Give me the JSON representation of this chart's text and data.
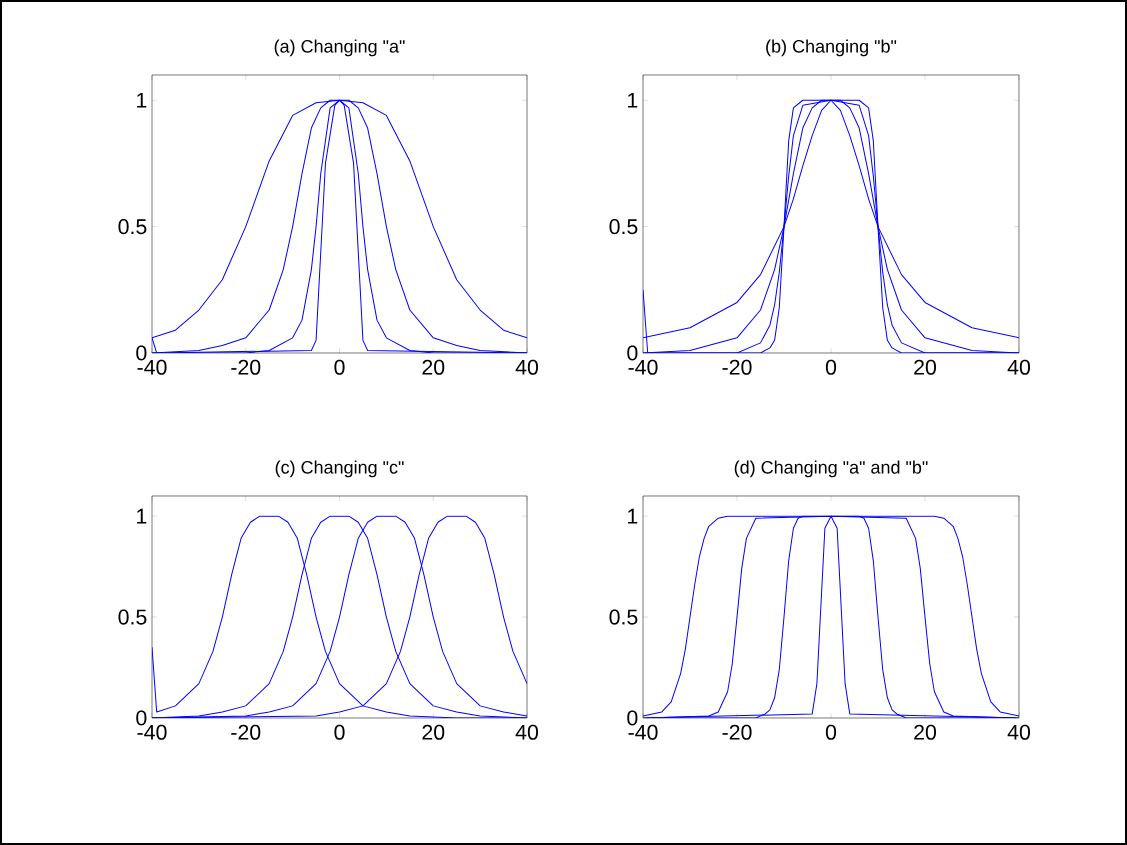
{
  "chart_data": [
    {
      "type": "line",
      "title": "(a) Changing \"a\"",
      "xlim": [
        -40,
        40
      ],
      "xticks": [
        -40,
        -20,
        0,
        20,
        40
      ],
      "ylim": [
        0,
        1.1
      ],
      "yticks": [
        0,
        0.5,
        1
      ],
      "series": [
        {
          "color": "#0000ff",
          "x": [
            -40,
            -35,
            -30,
            -25,
            -20,
            -15,
            -10,
            -5,
            0,
            5,
            10,
            15,
            20,
            25,
            30,
            35,
            40
          ],
          "values": [
            0.06,
            0.09,
            0.17,
            0.29,
            0.5,
            0.76,
            0.94,
            0.99,
            1,
            0.99,
            0.94,
            0.76,
            0.5,
            0.29,
            0.17,
            0.09,
            0.06
          ]
        },
        {
          "color": "#0000ff",
          "x": [
            -40,
            -30,
            -25,
            -20,
            -15,
            -12,
            -10,
            -8,
            -6,
            -4,
            -2,
            0,
            2,
            4,
            6,
            8,
            10,
            12,
            15,
            20,
            25,
            30,
            40
          ],
          "values": [
            0,
            0.01,
            0.03,
            0.06,
            0.17,
            0.33,
            0.5,
            0.71,
            0.89,
            0.97,
            1,
            1,
            1,
            0.97,
            0.89,
            0.71,
            0.5,
            0.33,
            0.17,
            0.06,
            0.03,
            0.01,
            0
          ]
        },
        {
          "color": "#0000ff",
          "x": [
            -40,
            -20,
            -15,
            -10,
            -8,
            -6,
            -5,
            -4,
            -2,
            0,
            2,
            4,
            5,
            6,
            8,
            10,
            15,
            20,
            40
          ],
          "values": [
            0,
            0,
            0.01,
            0.06,
            0.13,
            0.33,
            0.5,
            0.71,
            0.97,
            1,
            0.97,
            0.71,
            0.5,
            0.33,
            0.13,
            0.06,
            0.01,
            0,
            0
          ]
        },
        {
          "color": "#0000ff",
          "x": [
            -40,
            -39,
            -6,
            -5,
            -3,
            -1,
            0,
            1,
            3,
            5,
            6,
            40
          ],
          "values": [
            0.06,
            0,
            0.01,
            0.05,
            0.75,
            0.98,
            1,
            0.98,
            0.75,
            0.05,
            0.01,
            0
          ]
        }
      ]
    },
    {
      "type": "line",
      "title": "(b) Changing \"b\"",
      "xlim": [
        -40,
        40
      ],
      "xticks": [
        -40,
        -20,
        0,
        20,
        40
      ],
      "ylim": [
        0,
        1.1
      ],
      "yticks": [
        0,
        0.5,
        1
      ],
      "series": [
        {
          "color": "#0000ff",
          "x": [
            -40,
            -30,
            -20,
            -15,
            -10,
            -8,
            -6,
            -4,
            -2,
            0,
            2,
            4,
            6,
            8,
            10,
            15,
            20,
            30,
            40
          ],
          "values": [
            0.06,
            0.1,
            0.2,
            0.31,
            0.5,
            0.61,
            0.74,
            0.86,
            0.96,
            1,
            0.96,
            0.86,
            0.74,
            0.61,
            0.5,
            0.31,
            0.2,
            0.1,
            0.06
          ]
        },
        {
          "color": "#0000ff",
          "x": [
            -40,
            -30,
            -20,
            -15,
            -12,
            -10,
            -8,
            -6,
            -4,
            -2,
            0,
            2,
            4,
            6,
            8,
            10,
            12,
            15,
            20,
            30,
            40
          ],
          "values": [
            0,
            0.01,
            0.06,
            0.17,
            0.33,
            0.5,
            0.71,
            0.89,
            0.97,
            1,
            1,
            1,
            0.97,
            0.89,
            0.71,
            0.5,
            0.33,
            0.17,
            0.06,
            0.01,
            0
          ]
        },
        {
          "color": "#0000ff",
          "x": [
            -40,
            -20,
            -15,
            -13,
            -12,
            -11,
            -10,
            -9,
            -8,
            -6,
            0,
            6,
            8,
            9,
            10,
            11,
            12,
            13,
            15,
            20,
            40
          ],
          "values": [
            0,
            0,
            0.04,
            0.11,
            0.19,
            0.32,
            0.5,
            0.7,
            0.86,
            0.98,
            1,
            0.98,
            0.86,
            0.7,
            0.5,
            0.32,
            0.19,
            0.11,
            0.04,
            0,
            0
          ]
        },
        {
          "color": "#0000ff",
          "x": [
            -40,
            -39,
            -15,
            -13,
            -12,
            -11,
            -10,
            -9,
            -8,
            -6,
            0,
            6,
            8,
            9,
            10,
            11,
            12,
            13,
            15,
            40
          ],
          "values": [
            0.25,
            0,
            0,
            0.02,
            0.05,
            0.18,
            0.5,
            0.84,
            0.97,
            1,
            1,
            1,
            0.97,
            0.84,
            0.5,
            0.18,
            0.05,
            0.02,
            0,
            0
          ]
        }
      ]
    },
    {
      "type": "line",
      "title": "(c) Changing \"c\"",
      "xlim": [
        -40,
        40
      ],
      "xticks": [
        -40,
        -20,
        0,
        20,
        40
      ],
      "ylim": [
        0,
        1.1
      ],
      "yticks": [
        0,
        0.5,
        1
      ],
      "series": [
        {
          "color": "#0000ff",
          "x": [
            -40,
            -39,
            -35,
            -30,
            -27,
            -25,
            -23,
            -21,
            -19,
            -17,
            -15,
            -13,
            -11,
            -9,
            -7,
            -5,
            -3,
            0,
            5,
            10,
            15,
            25,
            40
          ],
          "values": [
            0.35,
            0.03,
            0.06,
            0.17,
            0.33,
            0.5,
            0.71,
            0.89,
            0.97,
            1,
            1,
            1,
            0.97,
            0.89,
            0.71,
            0.5,
            0.33,
            0.17,
            0.06,
            0.03,
            0.01,
            0,
            0
          ]
        },
        {
          "color": "#0000ff",
          "x": [
            -40,
            -30,
            -25,
            -20,
            -15,
            -12,
            -10,
            -8,
            -6,
            -4,
            -2,
            0,
            2,
            4,
            6,
            8,
            10,
            12,
            15,
            20,
            25,
            30,
            40
          ],
          "values": [
            0,
            0.01,
            0.03,
            0.06,
            0.17,
            0.33,
            0.5,
            0.71,
            0.89,
            0.97,
            1,
            1,
            1,
            0.97,
            0.89,
            0.71,
            0.5,
            0.33,
            0.17,
            0.06,
            0.03,
            0.01,
            0
          ]
        },
        {
          "color": "#0000ff",
          "x": [
            -40,
            -20,
            -15,
            -10,
            -5,
            -2,
            0,
            2,
            4,
            6,
            8,
            10,
            12,
            14,
            16,
            18,
            20,
            22,
            25,
            30,
            35,
            40
          ],
          "values": [
            0,
            0.01,
            0.03,
            0.06,
            0.17,
            0.33,
            0.5,
            0.71,
            0.89,
            0.97,
            1,
            1,
            1,
            0.97,
            0.89,
            0.71,
            0.5,
            0.33,
            0.17,
            0.06,
            0.03,
            0.01
          ]
        },
        {
          "color": "#0000ff",
          "x": [
            -40,
            -5,
            0,
            5,
            10,
            13,
            15,
            17,
            19,
            21,
            23,
            25,
            27,
            29,
            31,
            33,
            35,
            37,
            40
          ],
          "values": [
            0,
            0.01,
            0.03,
            0.06,
            0.17,
            0.33,
            0.5,
            0.71,
            0.89,
            0.97,
            1,
            1,
            1,
            0.97,
            0.89,
            0.71,
            0.5,
            0.33,
            0.17
          ]
        }
      ]
    },
    {
      "type": "line",
      "title": "(d) Changing \"a\" and \"b\"",
      "xlim": [
        -40,
        40
      ],
      "xticks": [
        -40,
        -20,
        0,
        20,
        40
      ],
      "ylim": [
        0,
        1.1
      ],
      "yticks": [
        0,
        0.5,
        1
      ],
      "series": [
        {
          "color": "#0000ff",
          "x": [
            -40,
            -36,
            -34,
            -32,
            -31,
            -30,
            -29,
            -28,
            -27,
            -26,
            -24,
            -22,
            0,
            22,
            24,
            26,
            27,
            28,
            29,
            30,
            31,
            32,
            34,
            36,
            40
          ],
          "values": [
            0.01,
            0.03,
            0.08,
            0.22,
            0.34,
            0.5,
            0.66,
            0.8,
            0.89,
            0.95,
            0.99,
            1,
            1,
            1,
            0.99,
            0.95,
            0.89,
            0.8,
            0.66,
            0.5,
            0.34,
            0.22,
            0.08,
            0.03,
            0.01
          ]
        },
        {
          "color": "#0000ff",
          "x": [
            -39.5,
            -26,
            -24,
            -22,
            -21,
            -20,
            -19,
            -18,
            -16,
            0,
            16,
            18,
            19,
            20,
            21,
            22,
            24,
            26,
            39.5
          ],
          "values": [
            0,
            0.01,
            0.03,
            0.13,
            0.27,
            0.5,
            0.74,
            0.89,
            0.99,
            1,
            0.99,
            0.89,
            0.74,
            0.5,
            0.27,
            0.13,
            0.03,
            0.01,
            0
          ]
        },
        {
          "color": "#0000ff",
          "x": [
            -39,
            -16,
            -14,
            -13,
            -12,
            -11,
            -10,
            -9,
            -8,
            -7,
            -6,
            0,
            6,
            7,
            8,
            9,
            10,
            11,
            12,
            13,
            14,
            16,
            39
          ],
          "values": [
            0,
            0,
            0.02,
            0.04,
            0.1,
            0.24,
            0.5,
            0.78,
            0.94,
            0.99,
            1,
            1,
            1,
            0.99,
            0.94,
            0.78,
            0.5,
            0.24,
            0.1,
            0.04,
            0.02,
            0,
            0
          ]
        },
        {
          "color": "#0000ff",
          "x": [
            -40,
            -4,
            -3,
            -1.3,
            0,
            1.3,
            3,
            4,
            40
          ],
          "values": [
            0,
            0.02,
            0.17,
            0.94,
            1,
            0.94,
            0.17,
            0.02,
            0
          ]
        }
      ]
    }
  ]
}
